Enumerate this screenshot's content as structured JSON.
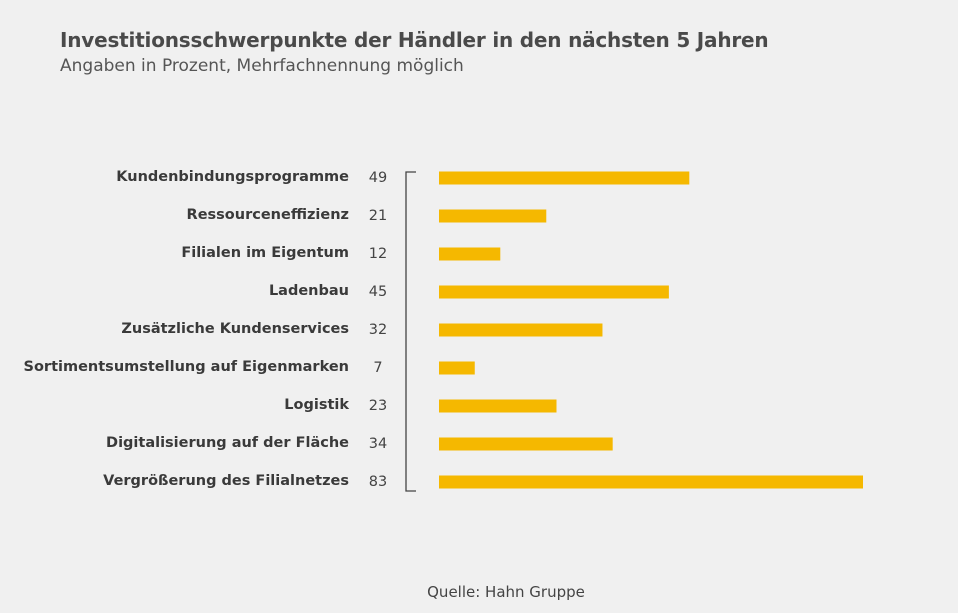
{
  "header": {
    "title": "Investitionsschwerpunkte der Händler in den nächsten 5 Jahren",
    "subtitle": "Angaben in Prozent, Mehrfachnennung möglich"
  },
  "footer": {
    "source": "Quelle: Hahn Gruppe"
  },
  "colors": {
    "bar": "#f5b800",
    "bracket": "#444444",
    "label": "#3a3a3a",
    "value": "#444444",
    "background": "#f0f0f0"
  },
  "chart_data": {
    "type": "bar",
    "orientation": "horizontal",
    "categories": [
      "Kundenbindungsprogramme",
      "Ressourceneffizienz",
      "Filialen im Eigentum",
      "Ladenbau",
      "Zusätzliche Kundenservices",
      "Sortimentsumstellung auf Eigenmarken",
      "Logistik",
      "Digitalisierung auf der Fläche",
      "Vergrößerung des Filialnetzes"
    ],
    "values": [
      49,
      21,
      12,
      45,
      32,
      7,
      23,
      34,
      83
    ],
    "title": "Investitionsschwerpunkte der Händler in den nächsten 5 Jahren",
    "subtitle": "Angaben in Prozent, Mehrfachnennung möglich",
    "xlabel": "",
    "ylabel": "",
    "xlim": [
      0,
      83
    ],
    "grid": false,
    "legend": "none",
    "data_labels": true
  }
}
